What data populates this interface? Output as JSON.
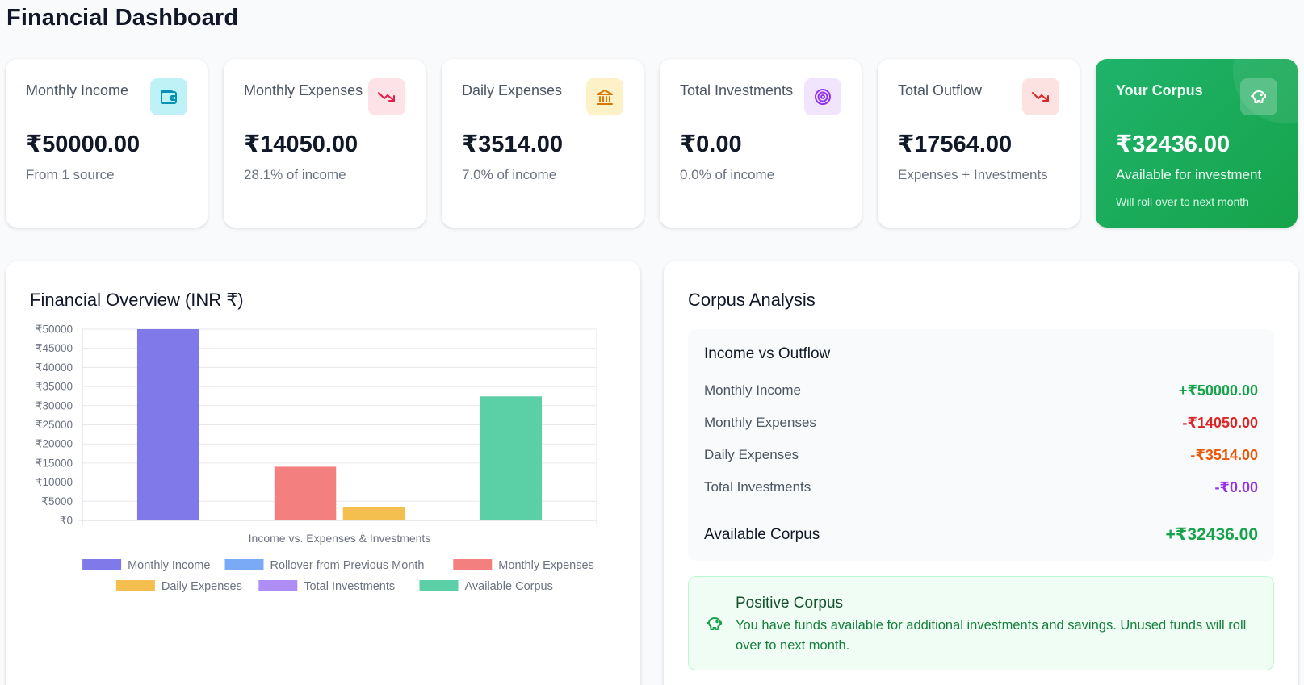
{
  "header": {
    "title": "Financial Dashboard"
  },
  "cards": [
    {
      "label": "Monthly Income",
      "value": "₹50000.00",
      "sub": "From 1 source",
      "icon": "wallet-icon",
      "icon_bg": "#bff2f7",
      "icon_color": "#0891b2"
    },
    {
      "label": "Monthly Expenses",
      "value": "₹14050.00",
      "sub": "28.1% of income",
      "icon": "trending-down-icon",
      "icon_bg": "#fde2e7",
      "icon_color": "#e11d48"
    },
    {
      "label": "Daily Expenses",
      "value": "₹3514.00",
      "sub": "7.0% of income",
      "icon": "bank-icon",
      "icon_bg": "#fdf1c7",
      "icon_color": "#d97706"
    },
    {
      "label": "Total Investments",
      "value": "₹0.00",
      "sub": "0.0% of income",
      "icon": "target-icon",
      "icon_bg": "#f1e5fd",
      "icon_color": "#9333ea"
    },
    {
      "label": "Total Outflow",
      "value": "₹17564.00",
      "sub": "Expenses + Investments",
      "icon": "trending-down-icon",
      "icon_bg": "#fde2e2",
      "icon_color": "#dc2626"
    },
    {
      "label": "Your Corpus",
      "value": "₹32436.00",
      "sub": "Available for investment",
      "note": "Will roll over to next month",
      "icon": "piggy-bank-icon",
      "icon_bg": "rgba(255,255,255,0.22)",
      "icon_color": "#ffffff"
    }
  ],
  "overview": {
    "title": "Financial Overview (INR ₹)"
  },
  "chart_data": {
    "type": "bar",
    "xlabel": "Income vs. Expenses & Investments",
    "ylim": [
      0,
      50000
    ],
    "yticks": [
      0,
      5000,
      10000,
      15000,
      20000,
      25000,
      30000,
      35000,
      40000,
      45000,
      50000
    ],
    "ytick_prefix": "₹",
    "grid": true,
    "legend_position": "bottom",
    "series": [
      {
        "name": "Monthly Income",
        "value": 50000,
        "color": "#8079ea"
      },
      {
        "name": "Rollover from Previous Month",
        "value": 0,
        "color": "#7aa9f5"
      },
      {
        "name": "Monthly Expenses",
        "value": 14050,
        "color": "#f3807f"
      },
      {
        "name": "Daily Expenses",
        "value": 3514,
        "color": "#f4bf4f"
      },
      {
        "name": "Total Investments",
        "value": 0,
        "color": "#ae8ef5"
      },
      {
        "name": "Available Corpus",
        "value": 32436,
        "color": "#5bd0a6"
      }
    ]
  },
  "analysis": {
    "title": "Corpus Analysis",
    "subtitle": "Income vs Outflow",
    "rows": [
      {
        "label": "Monthly Income",
        "value": "+₹50000.00",
        "color": "#16a34a"
      },
      {
        "label": "Monthly Expenses",
        "value": "-₹14050.00",
        "color": "#dc2626"
      },
      {
        "label": "Daily Expenses",
        "value": "-₹3514.00",
        "color": "#ea580c"
      },
      {
        "label": "Total Investments",
        "value": "-₹0.00",
        "color": "#9333ea"
      }
    ],
    "total": {
      "label": "Available Corpus",
      "value": "+₹32436.00",
      "color": "#16a34a"
    },
    "notice": {
      "title": "Positive Corpus",
      "text": "You have funds available for additional investments and savings. Unused funds will roll over to next month.",
      "icon": "piggy-bank-icon"
    }
  }
}
